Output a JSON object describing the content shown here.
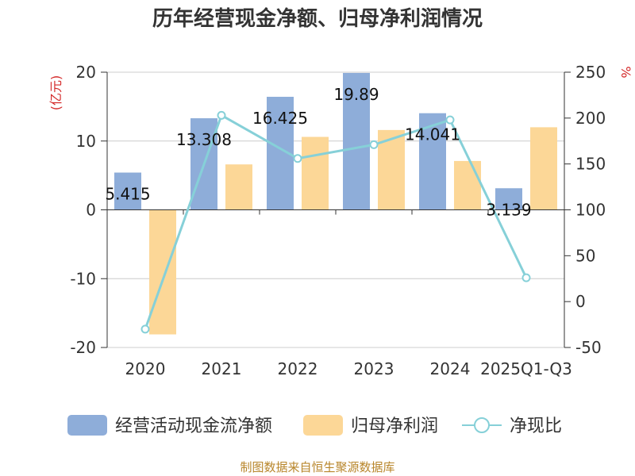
{
  "chart_data": {
    "type": "bar",
    "title": "历年经营现金净额、归母净利润情况",
    "categories": [
      "2020",
      "2021",
      "2022",
      "2023",
      "2024",
      "2025Q1-Q3"
    ],
    "y_left": {
      "unit": "(亿元)",
      "ylim": [
        -20,
        20
      ],
      "ticks": [
        -20,
        -10,
        0,
        10,
        20
      ]
    },
    "y_right": {
      "unit": "%",
      "ylim": [
        -50,
        250
      ],
      "ticks": [
        -50,
        0,
        50,
        100,
        150,
        200,
        250
      ]
    },
    "series": [
      {
        "name": "经营活动现金流净额",
        "type": "bar",
        "axis": "left",
        "color": "#8eadd9",
        "values": [
          5.415,
          13.308,
          16.425,
          19.89,
          14.041,
          3.139
        ],
        "labels": [
          "5.415",
          "13.308",
          "16.425",
          "19.89",
          "14.041",
          "3.139"
        ]
      },
      {
        "name": "归母净利润",
        "type": "bar",
        "axis": "left",
        "color": "#fcd797",
        "values": [
          -18.1,
          6.6,
          10.6,
          11.6,
          7.1,
          12.0
        ]
      },
      {
        "name": "净现比",
        "type": "line",
        "axis": "right",
        "color": "#86d0d8",
        "values": [
          -30,
          203,
          156,
          171,
          198,
          26
        ]
      }
    ],
    "grid": true,
    "legend": "bottom"
  },
  "source": "制图数据来自恒生聚源数据库"
}
